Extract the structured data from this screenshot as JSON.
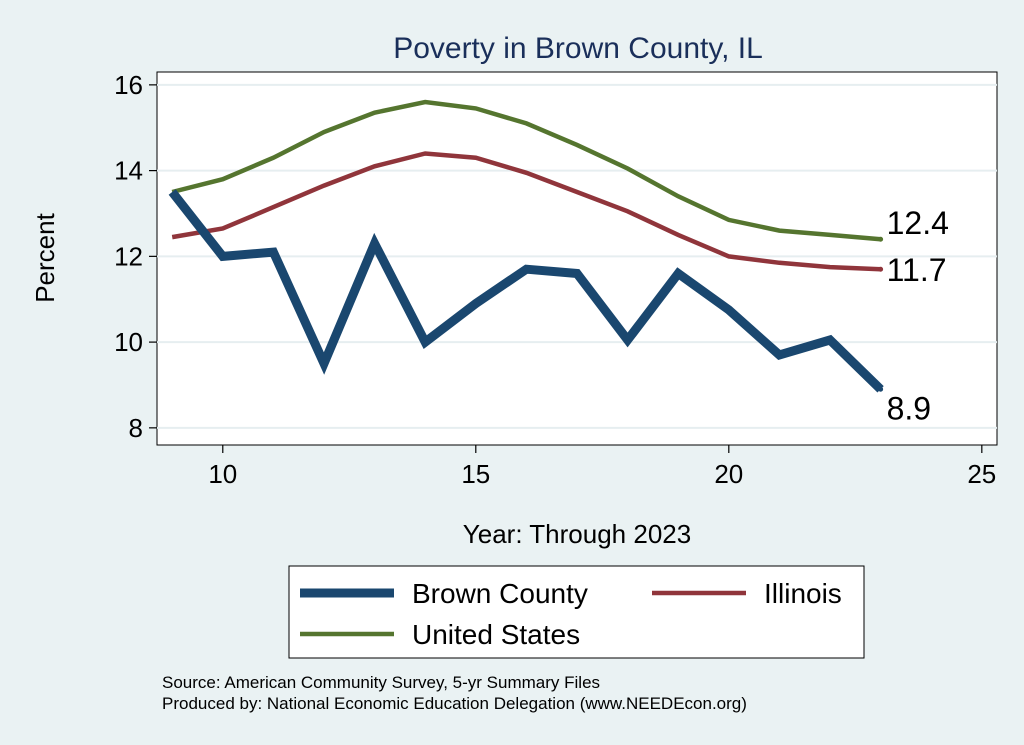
{
  "chart_data": {
    "type": "line",
    "title": "Poverty in Brown County, IL",
    "xlabel": "Year: Through 2023",
    "ylabel": "Percent",
    "xlim": [
      8.7,
      25.3
    ],
    "ylim": [
      7.6,
      16.3
    ],
    "xticks": [
      10,
      15,
      20,
      25
    ],
    "yticks": [
      8,
      10,
      12,
      14,
      16
    ],
    "grid": true,
    "legend_position": "bottom",
    "x": [
      9,
      10,
      11,
      12,
      13,
      14,
      15,
      16,
      17,
      18,
      19,
      20,
      21,
      22,
      23
    ],
    "series": [
      {
        "name": "Brown County",
        "color": "#1a476f",
        "values": [
          13.5,
          12.0,
          12.1,
          9.5,
          12.3,
          10.0,
          10.9,
          11.7,
          11.6,
          10.05,
          11.6,
          10.75,
          9.7,
          10.05,
          8.9
        ],
        "end_label": "8.9"
      },
      {
        "name": "Illinois",
        "color": "#90353b",
        "values": [
          12.45,
          12.65,
          13.15,
          13.65,
          14.1,
          14.4,
          14.3,
          13.95,
          13.5,
          13.05,
          12.5,
          12.0,
          11.85,
          11.75,
          11.7
        ],
        "end_label": "11.7"
      },
      {
        "name": "United States",
        "color": "#55752f",
        "values": [
          13.5,
          13.8,
          14.3,
          14.9,
          15.35,
          15.6,
          15.45,
          15.1,
          14.6,
          14.05,
          13.4,
          12.85,
          12.6,
          12.5,
          12.4
        ],
        "end_label": "12.4"
      }
    ],
    "notes": [
      "Source: American Community Survey, 5-yr Summary Files",
      "Produced by: National Economic Education Delegation (www.NEEDEcon.org)"
    ]
  }
}
